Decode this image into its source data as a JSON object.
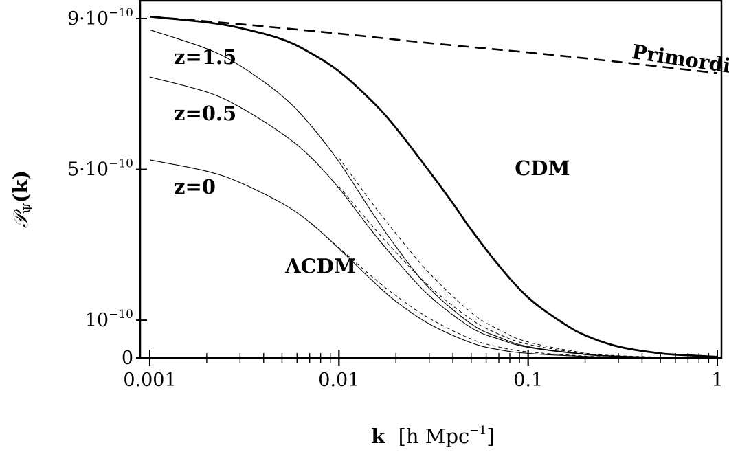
{
  "chart_data": {
    "type": "line",
    "xscale": "log",
    "xlim": [
      0.001,
      1
    ],
    "ylim": [
      0,
      9.2e-10
    ],
    "xlabel": {
      "bold": "k",
      "rest": "[h Mpc",
      "sup": "−1",
      "close": "]"
    },
    "ylabel": {
      "main": "𝒫",
      "sub": "Ψ",
      "arg": "(k)"
    },
    "x_ticks": [
      {
        "value": 0.001,
        "label": "0.001"
      },
      {
        "value": 0.01,
        "label": "0.01"
      },
      {
        "value": 0.1,
        "label": "0.1"
      },
      {
        "value": 1,
        "label": "1"
      }
    ],
    "y_ticks": [
      {
        "value": 0,
        "base": "0",
        "exp": ""
      },
      {
        "value": 1e-10,
        "base": "10",
        "exp": "−10"
      },
      {
        "value": 5e-10,
        "base": "5·10",
        "exp": "−10"
      },
      {
        "value": 9e-10,
        "base": "9·10",
        "exp": "−10"
      }
    ],
    "series": [
      {
        "style": "dashed-thick",
        "x": [
          0.001,
          0.003,
          0.01,
          0.03,
          0.1,
          0.3,
          1
        ],
        "y": [
          9.05e-10,
          8.85e-10,
          8.6e-10,
          8.35e-10,
          8.1e-10,
          7.85e-10,
          7.55e-10
        ]
      },
      {
        "style": "solid-thick",
        "x": [
          0.001,
          0.002,
          0.003,
          0.005,
          0.007,
          0.01,
          0.015,
          0.02,
          0.03,
          0.04,
          0.05,
          0.07,
          0.1,
          0.15,
          0.2,
          0.3,
          0.5,
          0.7,
          1
        ],
        "y": [
          9.05e-10,
          8.9e-10,
          8.75e-10,
          8.45e-10,
          8.1e-10,
          7.6e-10,
          6.8e-10,
          6.1e-10,
          4.95e-10,
          4.1e-10,
          3.4e-10,
          2.45e-10,
          1.6e-10,
          9.5e-11,
          6e-11,
          3e-11,
          1.2e-11,
          7e-12,
          3e-12
        ]
      },
      {
        "style": "solid-thin",
        "x": [
          0.001,
          0.002,
          0.003,
          0.005,
          0.007,
          0.01,
          0.015,
          0.02,
          0.03,
          0.05,
          0.07,
          0.1,
          0.2,
          0.3,
          0.5,
          1
        ],
        "y": [
          8.7e-10,
          8.2e-10,
          7.75e-10,
          6.95e-10,
          6.2e-10,
          5.2e-10,
          3.85e-10,
          2.95e-10,
          1.85e-10,
          9e-11,
          5.5e-11,
          3e-11,
          1e-11,
          5e-12,
          2e-12,
          1e-12
        ]
      },
      {
        "style": "solid-thin",
        "x": [
          0.001,
          0.002,
          0.003,
          0.005,
          0.007,
          0.01,
          0.015,
          0.02,
          0.03,
          0.05,
          0.07,
          0.1,
          0.2,
          0.3,
          0.5,
          1
        ],
        "y": [
          7.45e-10,
          7.05e-10,
          6.65e-10,
          5.95e-10,
          5.35e-10,
          4.5e-10,
          3.35e-10,
          2.6e-10,
          1.65e-10,
          8e-11,
          5e-11,
          2.8e-11,
          9e-12,
          4e-12,
          2e-12,
          1e-12
        ]
      },
      {
        "style": "solid-thin",
        "x": [
          0.001,
          0.002,
          0.003,
          0.005,
          0.007,
          0.01,
          0.015,
          0.02,
          0.03,
          0.05,
          0.07,
          0.1,
          0.2,
          0.3,
          0.5,
          1
        ],
        "y": [
          5.25e-10,
          4.95e-10,
          4.65e-10,
          4.1e-10,
          3.6e-10,
          2.9e-10,
          2.05e-10,
          1.5e-10,
          9e-11,
          4e-11,
          2.2e-11,
          1.2e-11,
          4e-12,
          2e-12,
          1e-12,
          5e-13
        ]
      },
      {
        "style": "dashed-thin",
        "x": [
          0.01,
          0.015,
          0.02,
          0.03,
          0.05,
          0.07,
          0.1,
          0.2,
          0.3,
          0.5,
          1
        ],
        "y": [
          5.3e-10,
          4.1e-10,
          3.3e-10,
          2.25e-10,
          1.2e-10,
          7.5e-11,
          4.2e-11,
          1.3e-11,
          6e-12,
          2.5e-12,
          1e-12
        ]
      },
      {
        "style": "dashed-thin",
        "x": [
          0.01,
          0.015,
          0.02,
          0.03,
          0.05,
          0.07,
          0.1,
          0.2,
          0.3,
          0.5,
          1
        ],
        "y": [
          4.55e-10,
          3.5e-10,
          2.8e-10,
          1.9e-10,
          1.02e-10,
          6.3e-11,
          3.6e-11,
          1.1e-11,
          5e-12,
          2e-12,
          1e-12
        ]
      },
      {
        "style": "dashed-thin",
        "x": [
          0.007,
          0.01,
          0.015,
          0.02,
          0.03,
          0.05,
          0.07,
          0.1,
          0.2,
          0.3,
          0.5,
          1
        ],
        "y": [
          3.6e-10,
          2.92e-10,
          2.15e-10,
          1.65e-10,
          1.05e-10,
          5e-11,
          2.9e-11,
          1.6e-11,
          5e-12,
          2.5e-12,
          1e-12,
          5e-13
        ]
      }
    ],
    "annotations": [
      {
        "text": "Primordial Spectrum",
        "x": 0.35,
        "y": 7.95e-10,
        "rotate": 8.5
      },
      {
        "text": "CDM",
        "x": 0.085,
        "y": 4.85e-10,
        "rotate": 0
      },
      {
        "text": "z=1.5",
        "x": 0.00134,
        "y": 7.8e-10,
        "rotate": 0
      },
      {
        "text": "z=0.5",
        "x": 0.00134,
        "y": 6.3e-10,
        "rotate": 0
      },
      {
        "text": "z=0",
        "x": 0.00134,
        "y": 4.35e-10,
        "rotate": 0
      },
      {
        "text": "ΛCDM",
        "x": 0.0052,
        "y": 2.25e-10,
        "rotate": 0
      }
    ]
  }
}
